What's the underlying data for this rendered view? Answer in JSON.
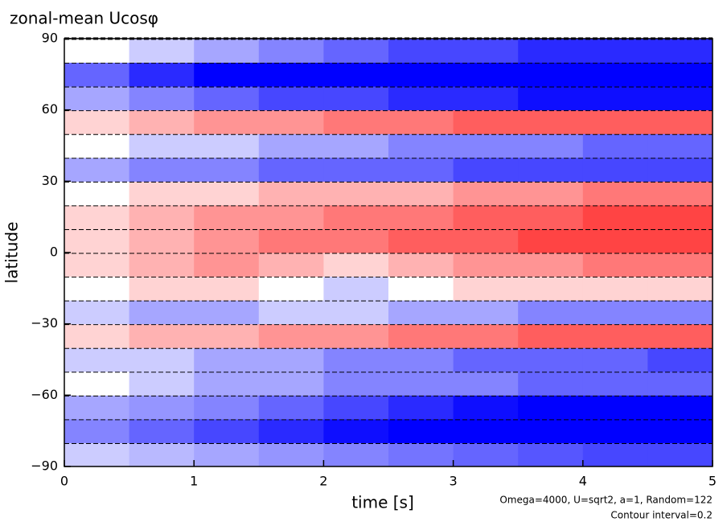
{
  "chart_data": {
    "type": "heatmap",
    "title": "zonal-mean Ucosφ",
    "xlabel": "time [s]",
    "ylabel": "latitude",
    "annotations": [
      "Omega=4000, U=sqrt2, a=1, Random=122",
      "Contour interval=0.2"
    ],
    "x": [
      0.25,
      0.75,
      1.25,
      1.75,
      2.25,
      2.75,
      3.25,
      3.75,
      4.25,
      4.75
    ],
    "y": [
      -85,
      -75,
      -65,
      -55,
      -45,
      -35,
      -25,
      -15,
      -5,
      5,
      15,
      25,
      35,
      45,
      55,
      65,
      75,
      85
    ],
    "z": [
      [
        -0.2,
        -0.3,
        -0.4,
        -0.5,
        -0.6,
        -0.7,
        -0.8,
        -0.9,
        -1.0,
        -1.0
      ],
      [
        -0.6,
        -0.8,
        -1.0,
        -1.2,
        -1.4,
        -1.6,
        -1.8,
        -2.0,
        -2.2,
        -2.4
      ],
      [
        -0.4,
        -0.5,
        -0.6,
        -0.8,
        -1.0,
        -1.2,
        -1.4,
        -1.6,
        -1.8,
        -2.0
      ],
      [
        0.0,
        -0.2,
        -0.4,
        -0.4,
        -0.6,
        -0.6,
        -0.6,
        -0.8,
        -0.8,
        -0.8
      ],
      [
        -0.2,
        -0.2,
        -0.4,
        -0.4,
        -0.6,
        -0.6,
        -0.8,
        -0.8,
        -0.8,
        -1.0
      ],
      [
        0.2,
        0.4,
        0.4,
        0.6,
        0.6,
        0.8,
        0.8,
        1.0,
        1.0,
        1.0
      ],
      [
        -0.2,
        -0.4,
        -0.4,
        -0.2,
        -0.2,
        -0.4,
        -0.4,
        -0.6,
        -0.6,
        -0.6
      ],
      [
        0.0,
        0.2,
        0.2,
        0.0,
        -0.2,
        0.0,
        0.2,
        0.2,
        0.2,
        0.2
      ],
      [
        0.2,
        0.4,
        0.6,
        0.4,
        0.2,
        0.4,
        0.6,
        0.6,
        0.8,
        0.8
      ],
      [
        0.2,
        0.4,
        0.6,
        0.8,
        0.8,
        1.0,
        1.0,
        1.2,
        1.2,
        1.2
      ],
      [
        0.2,
        0.4,
        0.6,
        0.6,
        0.8,
        0.8,
        1.0,
        1.0,
        1.2,
        1.2
      ],
      [
        0.0,
        0.2,
        0.2,
        0.4,
        0.4,
        0.4,
        0.6,
        0.6,
        0.8,
        0.8
      ],
      [
        -0.4,
        -0.6,
        -0.6,
        -0.8,
        -0.8,
        -0.8,
        -1.0,
        -1.0,
        -1.0,
        -1.0
      ],
      [
        0.0,
        -0.2,
        -0.2,
        -0.4,
        -0.4,
        -0.6,
        -0.6,
        -0.6,
        -0.8,
        -0.8
      ],
      [
        0.2,
        0.4,
        0.6,
        0.6,
        0.8,
        0.8,
        1.0,
        1.0,
        1.0,
        1.0
      ],
      [
        -0.4,
        -0.6,
        -0.8,
        -1.0,
        -1.0,
        -1.2,
        -1.2,
        -1.4,
        -1.4,
        -1.4
      ],
      [
        -0.8,
        -1.2,
        -1.6,
        -2.0,
        -2.2,
        -2.4,
        -2.6,
        -2.8,
        -3.0,
        -3.0
      ],
      [
        0.0,
        -0.2,
        -0.4,
        -0.6,
        -0.8,
        -1.0,
        -1.0,
        -1.2,
        -1.2,
        -1.2
      ]
    ],
    "negative_color": "#0000ff",
    "positive_color": "#ff2020",
    "xlim": [
      0,
      5
    ],
    "xticks": [
      0,
      1,
      2,
      3,
      4,
      5
    ],
    "ylim": [
      -90,
      90
    ],
    "yticks": [
      {
        "value": -90,
        "label": "−90"
      },
      {
        "value": -60,
        "label": "−60"
      },
      {
        "value": -30,
        "label": "−30"
      },
      0,
      30,
      60,
      90
    ]
  }
}
